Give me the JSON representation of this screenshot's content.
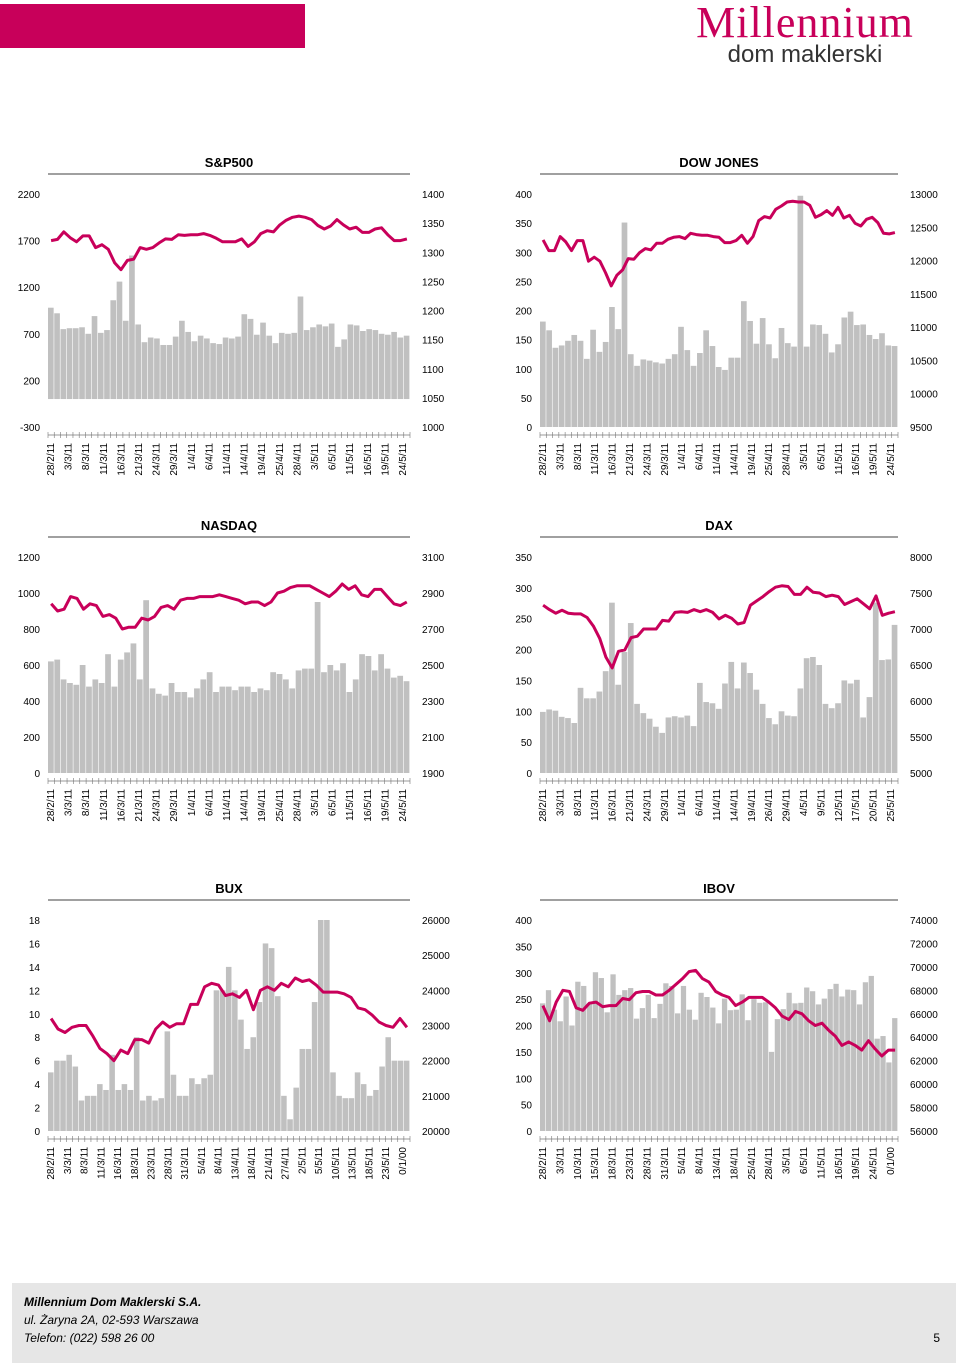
{
  "header": {
    "logo_main": "Millennium",
    "logo_sub": "dom maklerski"
  },
  "colors": {
    "brand": "#c8005a",
    "bar": "#c0c0c0",
    "line": "#c8005a"
  },
  "footer": {
    "company": "Millennium Dom Maklerski S.A.",
    "address": "ul. Żaryna 2A, 02-593 Warszawa",
    "phone": "Telefon: (022) 598 26 00",
    "page": "5"
  },
  "chart_data": [
    {
      "id": "sp500",
      "type": "bar+line",
      "title": "S&P500",
      "left_axis": [
        "2200",
        "1700",
        "1200",
        "700",
        "200",
        "-300"
      ],
      "left_range": [
        -300,
        2200
      ],
      "right_axis": [
        "1400",
        "1350",
        "1300",
        "1250",
        "1200",
        "1150",
        "1100",
        "1050",
        "1000"
      ],
      "right_range": [
        1000,
        1400
      ],
      "x_labels": [
        "28/2/11",
        "3/3/11",
        "8/3/11",
        "11/3/11",
        "16/3/11",
        "21/3/11",
        "24/3/11",
        "29/3/11",
        "1/4/11",
        "6/4/11",
        "11/4/11",
        "14/4/11",
        "19/4/11",
        "25/4/11",
        "28/4/11",
        "3/5/11",
        "6/5/11",
        "11/5/11",
        "16/5/11",
        "19/5/11",
        "24/5/11"
      ],
      "bars": [
        980,
        920,
        750,
        760,
        760,
        770,
        700,
        890,
        710,
        740,
        1060,
        1260,
        840,
        1540,
        800,
        610,
        660,
        650,
        580,
        580,
        670,
        840,
        720,
        620,
        680,
        650,
        600,
        590,
        660,
        650,
        670,
        910,
        860,
        690,
        820,
        680,
        600,
        710,
        700,
        710,
        1100,
        740,
        770,
        800,
        780,
        810,
        560,
        640,
        800,
        790,
        730,
        750,
        740,
        700,
        690,
        720,
        660,
        680
      ],
      "line": [
        1320,
        1322,
        1335,
        1325,
        1318,
        1328,
        1328,
        1308,
        1313,
        1305,
        1282,
        1270,
        1286,
        1288,
        1308,
        1305,
        1308,
        1316,
        1323,
        1322,
        1330,
        1329,
        1330,
        1330,
        1332,
        1329,
        1324,
        1318,
        1318,
        1318,
        1323,
        1310,
        1318,
        1332,
        1337,
        1335,
        1347,
        1355,
        1360,
        1362,
        1360,
        1356,
        1346,
        1340,
        1345,
        1356,
        1347,
        1340,
        1343,
        1334,
        1334,
        1340,
        1342,
        1330,
        1320,
        1320,
        1323
      ]
    },
    {
      "id": "dow",
      "type": "bar+line",
      "title": "DOW JONES",
      "left_axis": [
        "400",
        "350",
        "300",
        "250",
        "200",
        "150",
        "100",
        "50",
        "0"
      ],
      "left_range": [
        0,
        400
      ],
      "right_axis": [
        "13000",
        "12500",
        "12000",
        "11500",
        "11000",
        "10500",
        "10000",
        "9500"
      ],
      "right_range": [
        9500,
        13000
      ],
      "x_labels": [
        "28/2/11",
        "3/3/11",
        "8/3/11",
        "11/3/11",
        "16/3/11",
        "21/3/11",
        "24/3/11",
        "29/3/11",
        "1/4/11",
        "6/4/11",
        "11/4/11",
        "14/4/11",
        "19/4/11",
        "25/4/11",
        "28/4/11",
        "3/5/11",
        "6/5/11",
        "11/5/11",
        "16/5/11",
        "19/5/11",
        "24/5/11"
      ],
      "bars": [
        181,
        166,
        136,
        140,
        148,
        158,
        148,
        117,
        167,
        129,
        146,
        206,
        168,
        351,
        125,
        105,
        116,
        114,
        111,
        109,
        117,
        125,
        172,
        132,
        105,
        127,
        166,
        139,
        103,
        98,
        119,
        119,
        216,
        182,
        143,
        187,
        142,
        118,
        170,
        144,
        138,
        397,
        138,
        176,
        175,
        160,
        128,
        142,
        188,
        198,
        175,
        176,
        158,
        151,
        161,
        140,
        139
      ],
      "line": [
        12310,
        12150,
        12150,
        12360,
        12280,
        12150,
        12300,
        12300,
        11990,
        12050,
        11990,
        11820,
        11620,
        11780,
        11860,
        12030,
        12020,
        12120,
        12180,
        12160,
        12260,
        12260,
        12320,
        12350,
        12360,
        12330,
        12410,
        12390,
        12380,
        12380,
        12360,
        12350,
        12270,
        12270,
        12300,
        12380,
        12260,
        12360,
        12600,
        12660,
        12640,
        12770,
        12820,
        12880,
        12890,
        12880,
        12880,
        12830,
        12650,
        12690,
        12750,
        12680,
        12800,
        12640,
        12680,
        12560,
        12520,
        12620,
        12650,
        12570,
        12410,
        12400,
        12420
      ]
    },
    {
      "id": "nasdaq",
      "type": "bar+line",
      "title": "NASDAQ",
      "left_axis": [
        "1200",
        "1000",
        "800",
        "600",
        "400",
        "200",
        "0"
      ],
      "left_range": [
        0,
        1200
      ],
      "right_axis": [
        "3100",
        "2900",
        "2700",
        "2500",
        "2300",
        "2100",
        "1900"
      ],
      "right_range": [
        1900,
        3100
      ],
      "x_labels": [
        "28/2/11",
        "3/3/11",
        "8/3/11",
        "11/3/11",
        "16/3/11",
        "21/3/11",
        "24/3/11",
        "29/3/11",
        "1/4/11",
        "6/4/11",
        "11/4/11",
        "14/4/11",
        "19/4/11",
        "25/4/11",
        "28/4/11",
        "3/5/11",
        "6/5/11",
        "11/5/11",
        "16/5/11",
        "19/5/11",
        "24/5/11"
      ],
      "bars": [
        620,
        630,
        520,
        500,
        490,
        600,
        480,
        520,
        500,
        660,
        480,
        630,
        670,
        720,
        520,
        960,
        470,
        440,
        430,
        500,
        450,
        450,
        420,
        470,
        520,
        560,
        450,
        480,
        480,
        460,
        480,
        480,
        450,
        470,
        460,
        560,
        550,
        520,
        470,
        570,
        580,
        580,
        950,
        560,
        600,
        570,
        610,
        450,
        520,
        660,
        650,
        570,
        660,
        580,
        530,
        540,
        510
      ],
      "line": [
        2840,
        2800,
        2810,
        2880,
        2870,
        2810,
        2840,
        2830,
        2770,
        2780,
        2760,
        2700,
        2710,
        2710,
        2760,
        2750,
        2770,
        2820,
        2830,
        2810,
        2860,
        2870,
        2870,
        2880,
        2880,
        2880,
        2890,
        2880,
        2870,
        2860,
        2840,
        2850,
        2850,
        2830,
        2850,
        2900,
        2910,
        2930,
        2940,
        2940,
        2940,
        2920,
        2900,
        2880,
        2910,
        2950,
        2920,
        2940,
        2890,
        2880,
        2920,
        2920,
        2880,
        2840,
        2830,
        2850
      ]
    },
    {
      "id": "dax",
      "type": "bar+line",
      "title": "DAX",
      "left_axis": [
        "350",
        "300",
        "250",
        "200",
        "150",
        "100",
        "50",
        "0"
      ],
      "left_range": [
        0,
        350
      ],
      "right_axis": [
        "8000",
        "7500",
        "7000",
        "6500",
        "6000",
        "5500",
        "5000"
      ],
      "right_range": [
        5000,
        8000
      ],
      "x_labels": [
        "28/2/11",
        "3/3/11",
        "8/3/11",
        "11/3/11",
        "16/3/11",
        "21/3/11",
        "24/3/11",
        "29/3/11",
        "1/4/11",
        "6/4/11",
        "11/4/11",
        "14/4/11",
        "19/4/11",
        "26/4/11",
        "29/4/11",
        "4/5/11",
        "9/5/11",
        "12/5/11",
        "17/5/11",
        "20/5/11",
        "25/5/11"
      ],
      "bars": [
        99,
        103,
        101,
        91,
        89,
        81,
        138,
        121,
        121,
        132,
        165,
        276,
        143,
        196,
        243,
        112,
        97,
        88,
        75,
        65,
        90,
        92,
        90,
        93,
        76,
        146,
        115,
        113,
        104,
        145,
        180,
        137,
        179,
        162,
        135,
        112,
        89,
        79,
        100,
        93,
        92,
        137,
        186,
        188,
        175,
        112,
        105,
        113,
        150,
        145,
        151,
        90,
        123,
        276,
        183,
        184,
        240
      ],
      "line": [
        7330,
        7270,
        7220,
        7260,
        7220,
        7210,
        7210,
        7160,
        7040,
        6870,
        6610,
        6460,
        6690,
        6710,
        6880,
        6900,
        7000,
        7000,
        7000,
        7120,
        7110,
        7230,
        7240,
        7230,
        7270,
        7240,
        7270,
        7230,
        7140,
        7190,
        7150,
        7070,
        7090,
        7330,
        7390,
        7450,
        7520,
        7580,
        7600,
        7590,
        7480,
        7480,
        7580,
        7510,
        7500,
        7450,
        7470,
        7450,
        7340,
        7380,
        7420,
        7350,
        7280,
        7460,
        7190,
        7220,
        7240
      ]
    },
    {
      "id": "bux",
      "type": "bar+line",
      "title": "BUX",
      "left_axis": [
        "18",
        "16",
        "14",
        "12",
        "10",
        "8",
        "6",
        "4",
        "2",
        "0"
      ],
      "left_range": [
        0,
        18
      ],
      "right_axis": [
        "26000",
        "25000",
        "24000",
        "23000",
        "22000",
        "21000",
        "20000"
      ],
      "right_range": [
        20000,
        26000
      ],
      "x_labels": [
        "28/2/11",
        "3/3/11",
        "8/3/11",
        "11/3/11",
        "16/3/11",
        "18/3/11",
        "23/3/11",
        "28/3/11",
        "31/3/11",
        "5/4/11",
        "8/4/11",
        "13/4/11",
        "18/4/11",
        "21/4/11",
        "27/4/11",
        "2/5/11",
        "5/5/11",
        "10/5/11",
        "13/5/11",
        "18/5/11",
        "23/5/11",
        "0/1/00"
      ],
      "bars": [
        5,
        6,
        6,
        6.5,
        5.5,
        2.6,
        3,
        3,
        4,
        3.5,
        6.5,
        3.5,
        4,
        3.5,
        8,
        2.6,
        3,
        2.6,
        2.8,
        8.5,
        4.8,
        3,
        3,
        4.5,
        4,
        4.5,
        4.8,
        12,
        12,
        14,
        12,
        9.5,
        7,
        8,
        11,
        16,
        15.6,
        11.5,
        3,
        1,
        3.7,
        7,
        7,
        11,
        18,
        18,
        5,
        3,
        2.8,
        2.8,
        5,
        4,
        3,
        3.5,
        5.5,
        8,
        6,
        6,
        6
      ],
      "line": [
        23200,
        22900,
        22800,
        22950,
        23000,
        23000,
        22700,
        22350,
        22200,
        22000,
        22300,
        22200,
        22600,
        22600,
        22500,
        22900,
        23100,
        22950,
        23050,
        23050,
        23600,
        23600,
        24100,
        24200,
        24150,
        23850,
        23900,
        23800,
        24000,
        23450,
        24000,
        24100,
        24000,
        24200,
        24100,
        24350,
        24250,
        24300,
        24150,
        23950,
        23950,
        23950,
        23900,
        23800,
        23500,
        23450,
        23300,
        23100,
        23000,
        22950,
        23200,
        22950
      ]
    },
    {
      "id": "ibov",
      "type": "bar+line",
      "title": "IBOV",
      "left_axis": [
        "400",
        "350",
        "300",
        "250",
        "200",
        "150",
        "100",
        "50",
        "0"
      ],
      "left_range": [
        0,
        400
      ],
      "right_axis": [
        "74000",
        "72000",
        "70000",
        "68000",
        "66000",
        "64000",
        "62000",
        "60000",
        "58000",
        "56000"
      ],
      "right_range": [
        56000,
        74000
      ],
      "x_labels": [
        "28/2/11",
        "3/3/11",
        "10/3/11",
        "15/3/11",
        "18/3/11",
        "23/3/11",
        "28/3/11",
        "31/3/11",
        "5/4/11",
        "8/4/11",
        "13/4/11",
        "18/4/11",
        "25/4/11",
        "28/4/11",
        "3/5/11",
        "6/5/11",
        "11/5/11",
        "16/5/11",
        "19/5/11",
        "24/5/11",
        "0/1/00"
      ],
      "bars": [
        242,
        267,
        230,
        208,
        255,
        200,
        283,
        275,
        242,
        301,
        290,
        225,
        297,
        258,
        267,
        271,
        213,
        233,
        258,
        214,
        241,
        280,
        275,
        223,
        275,
        230,
        211,
        262,
        254,
        234,
        204,
        251,
        229,
        230,
        259,
        210,
        250,
        243,
        244,
        150,
        212,
        231,
        262,
        242,
        243,
        272,
        265,
        240,
        251,
        269,
        279,
        255,
        268,
        267,
        240,
        282,
        294,
        175,
        180,
        130,
        214
      ],
      "line": [
        66700,
        65400,
        67000,
        68000,
        67900,
        66500,
        66300,
        66900,
        67000,
        66600,
        66700,
        66700,
        67300,
        67200,
        67800,
        67900,
        67900,
        67600,
        67600,
        68000,
        68500,
        69000,
        69600,
        69700,
        69000,
        68700,
        67900,
        67600,
        67400,
        66700,
        67000,
        67400,
        67400,
        67400,
        67000,
        66500,
        65800,
        65500,
        66200,
        66000,
        65400,
        65000,
        65200,
        64600,
        64100,
        63300,
        63600,
        63300,
        62900,
        63700,
        63000,
        62400,
        62900,
        62900
      ]
    }
  ]
}
